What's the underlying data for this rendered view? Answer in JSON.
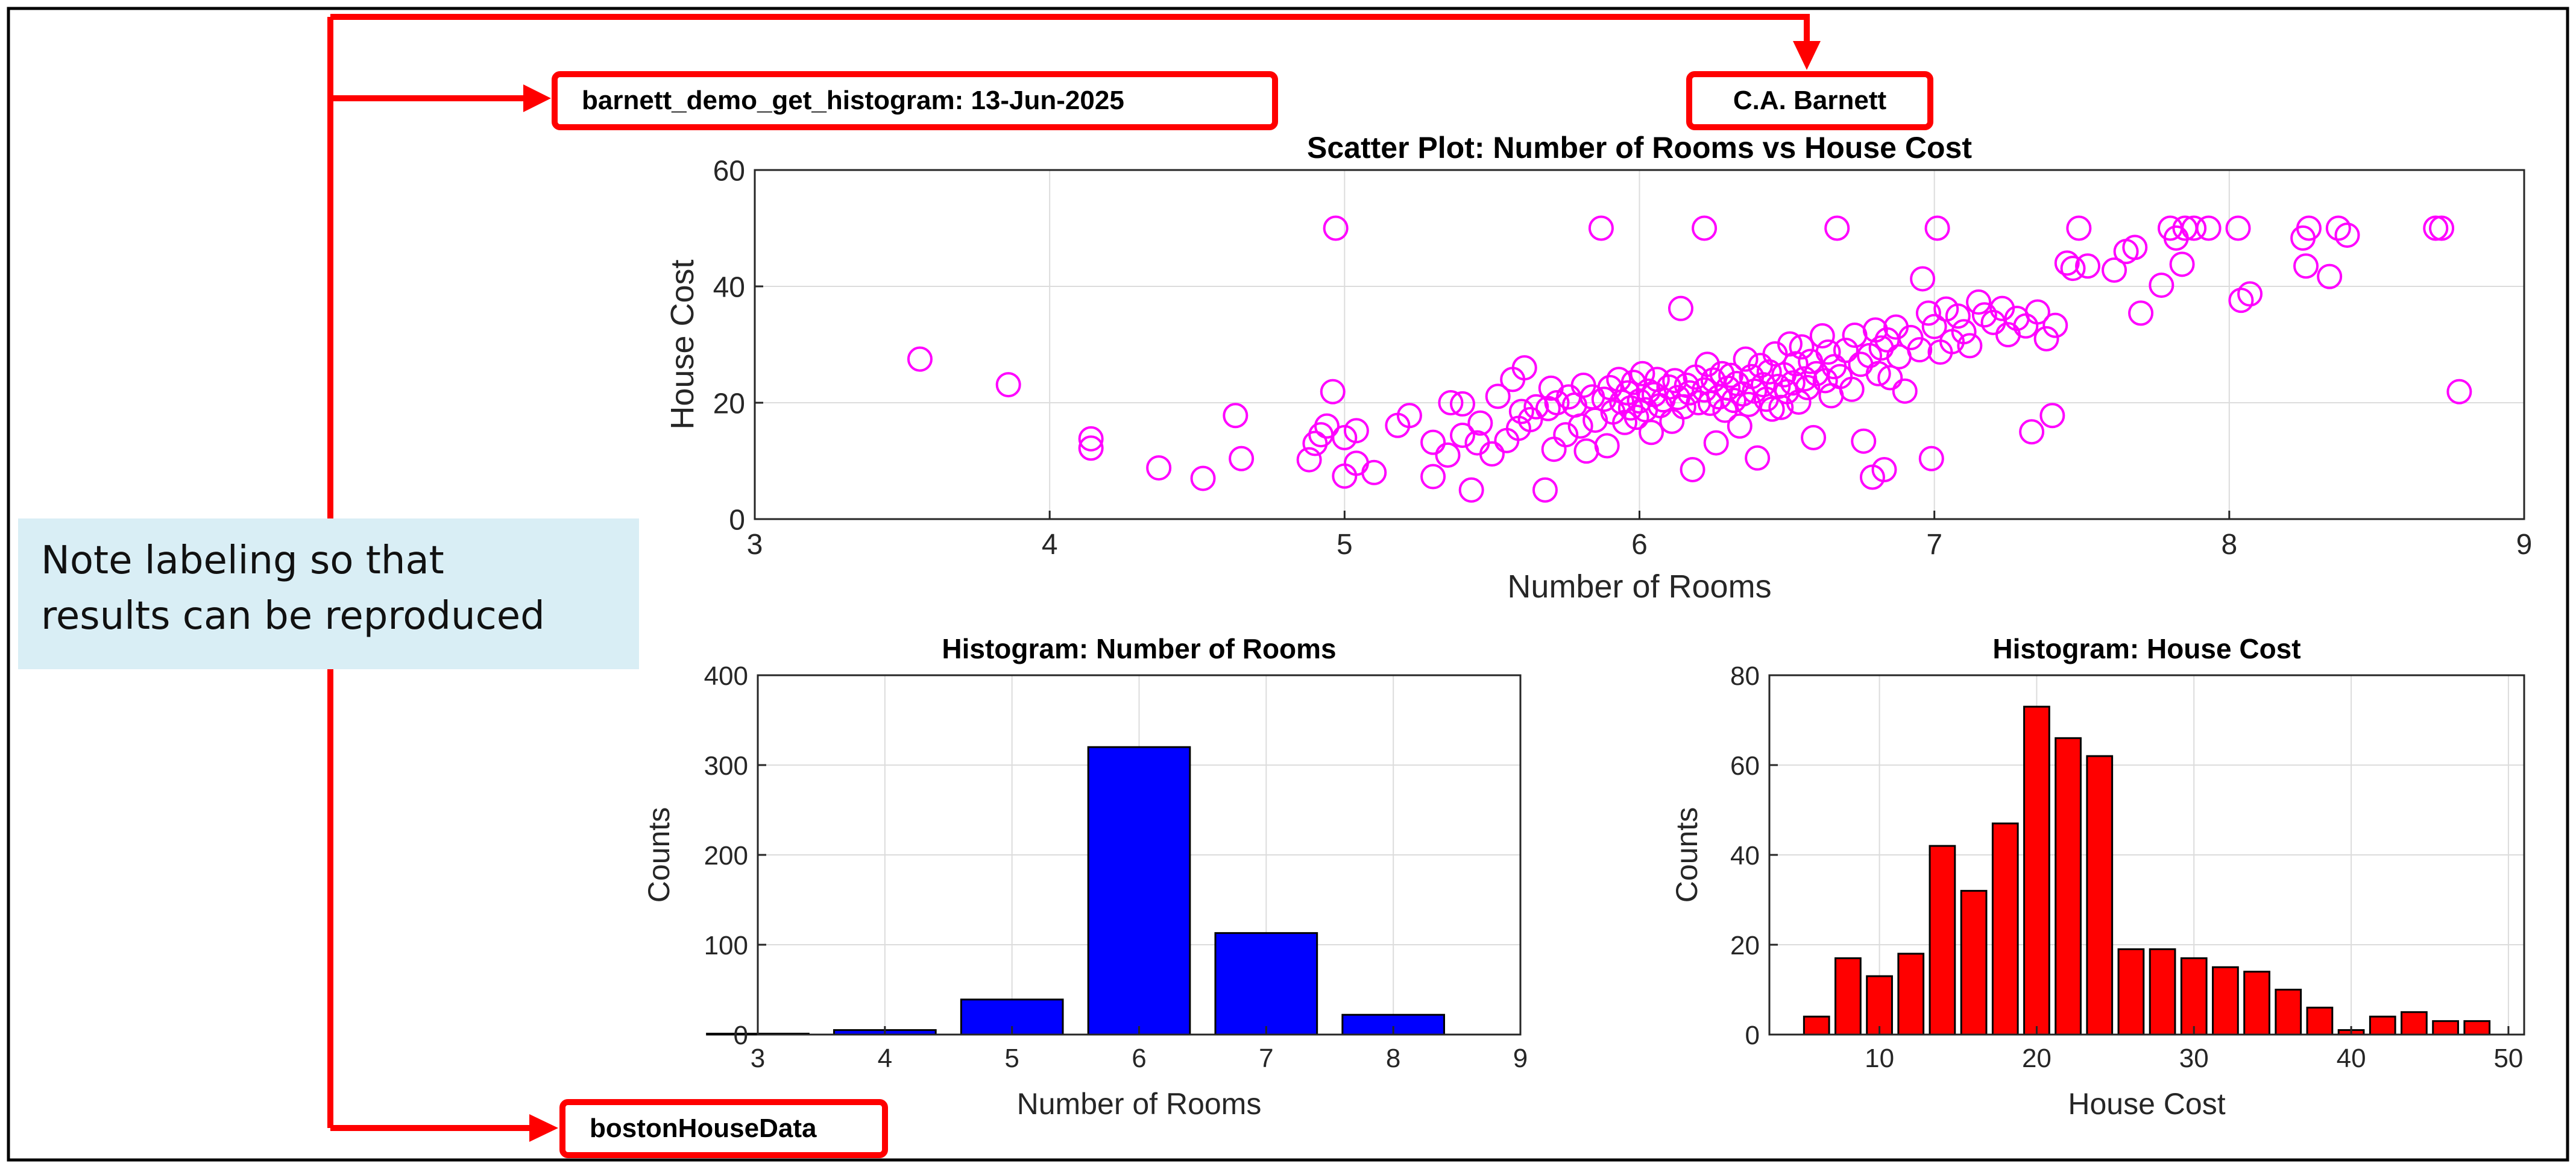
{
  "labels": {
    "program": "barnett_demo_get_histogram: 13-Jun-2025",
    "author": "C.A. Barnett",
    "dataset": "bostonHouseData",
    "note_lines": [
      "Note labeling so that",
      "results can be reproduced"
    ]
  },
  "colors": {
    "annotation_red": "#ff0000",
    "note_background": "#d9eef5",
    "scatter_marker": "#ff00ff",
    "rooms_bars": "#0000ff",
    "cost_bars": "#ff0000"
  },
  "chart_data": [
    {
      "type": "scatter",
      "title": "Scatter Plot: Number of Rooms vs House Cost",
      "xlabel": "Number of Rooms",
      "ylabel": "House Cost",
      "xlim": [
        3,
        9
      ],
      "ylim": [
        0,
        60
      ],
      "xticks": [
        3,
        4,
        5,
        6,
        7,
        8,
        9
      ],
      "yticks": [
        0,
        20,
        40,
        60
      ],
      "grid": true,
      "marker": "open-circle",
      "points": [
        [
          3.56,
          27.5
        ],
        [
          3.86,
          23.1
        ],
        [
          4.14,
          13.8
        ],
        [
          4.14,
          12.2
        ],
        [
          4.37,
          8.8
        ],
        [
          4.52,
          7.0
        ],
        [
          4.63,
          17.8
        ],
        [
          4.65,
          10.4
        ],
        [
          4.88,
          10.2
        ],
        [
          4.9,
          13.0
        ],
        [
          4.92,
          14.5
        ],
        [
          4.94,
          16.0
        ],
        [
          4.96,
          21.9
        ],
        [
          4.97,
          50.0
        ],
        [
          5.0,
          14.0
        ],
        [
          5.0,
          7.4
        ],
        [
          5.04,
          15.2
        ],
        [
          5.04,
          9.6
        ],
        [
          5.1,
          8.0
        ],
        [
          5.18,
          16.1
        ],
        [
          5.22,
          17.8
        ],
        [
          5.3,
          13.2
        ],
        [
          5.3,
          7.3
        ],
        [
          5.35,
          11.0
        ],
        [
          5.36,
          20.0
        ],
        [
          5.4,
          14.4
        ],
        [
          5.4,
          19.8
        ],
        [
          5.43,
          5.0
        ],
        [
          5.45,
          13.1
        ],
        [
          5.46,
          16.5
        ],
        [
          5.5,
          11.2
        ],
        [
          5.52,
          21.1
        ],
        [
          5.55,
          13.5
        ],
        [
          5.57,
          24.0
        ],
        [
          5.59,
          15.6
        ],
        [
          5.6,
          18.5
        ],
        [
          5.61,
          26.0
        ],
        [
          5.63,
          17.1
        ],
        [
          5.65,
          19.3
        ],
        [
          5.68,
          5.0
        ],
        [
          5.69,
          19.0
        ],
        [
          5.7,
          22.5
        ],
        [
          5.71,
          12.0
        ],
        [
          5.72,
          20.0
        ],
        [
          5.75,
          14.5
        ],
        [
          5.76,
          21.0
        ],
        [
          5.78,
          19.6
        ],
        [
          5.8,
          16.0
        ],
        [
          5.81,
          23.0
        ],
        [
          5.82,
          11.7
        ],
        [
          5.84,
          21.0
        ],
        [
          5.85,
          17.0
        ],
        [
          5.87,
          50.0
        ],
        [
          5.88,
          20.6
        ],
        [
          5.89,
          12.6
        ],
        [
          5.9,
          22.6
        ],
        [
          5.91,
          18.4
        ],
        [
          5.93,
          24.0
        ],
        [
          5.94,
          20.1
        ],
        [
          5.95,
          16.6
        ],
        [
          5.96,
          21.7
        ],
        [
          5.97,
          19.1
        ],
        [
          5.98,
          23.5
        ],
        [
          5.99,
          17.5
        ],
        [
          6.0,
          20.3
        ],
        [
          6.01,
          25.0
        ],
        [
          6.02,
          18.8
        ],
        [
          6.03,
          22.0
        ],
        [
          6.04,
          14.9
        ],
        [
          6.05,
          21.4
        ],
        [
          6.06,
          24.0
        ],
        [
          6.07,
          19.5
        ],
        [
          6.08,
          20.5
        ],
        [
          6.1,
          22.7
        ],
        [
          6.11,
          16.8
        ],
        [
          6.12,
          23.8
        ],
        [
          6.13,
          20.9
        ],
        [
          6.14,
          36.2
        ],
        [
          6.15,
          19.3
        ],
        [
          6.16,
          23.0
        ],
        [
          6.17,
          21.7
        ],
        [
          6.18,
          8.5
        ],
        [
          6.19,
          24.4
        ],
        [
          6.2,
          20.0
        ],
        [
          6.22,
          50.0
        ],
        [
          6.22,
          22.2
        ],
        [
          6.23,
          26.6
        ],
        [
          6.24,
          19.9
        ],
        [
          6.25,
          23.9
        ],
        [
          6.26,
          13.1
        ],
        [
          6.27,
          21.0
        ],
        [
          6.28,
          25.0
        ],
        [
          6.29,
          18.7
        ],
        [
          6.3,
          22.5
        ],
        [
          6.31,
          24.7
        ],
        [
          6.32,
          20.4
        ],
        [
          6.33,
          23.3
        ],
        [
          6.34,
          16.0
        ],
        [
          6.35,
          21.5
        ],
        [
          6.36,
          27.5
        ],
        [
          6.37,
          19.7
        ],
        [
          6.38,
          24.5
        ],
        [
          6.39,
          22.0
        ],
        [
          6.4,
          10.5
        ],
        [
          6.41,
          26.4
        ],
        [
          6.42,
          23.1
        ],
        [
          6.43,
          20.6
        ],
        [
          6.44,
          25.3
        ],
        [
          6.45,
          18.9
        ],
        [
          6.46,
          28.4
        ],
        [
          6.47,
          22.8
        ],
        [
          6.48,
          19.2
        ],
        [
          6.49,
          24.8
        ],
        [
          6.5,
          21.9
        ],
        [
          6.51,
          30.1
        ],
        [
          6.52,
          23.4
        ],
        [
          6.53,
          26.7
        ],
        [
          6.54,
          20.1
        ],
        [
          6.55,
          29.6
        ],
        [
          6.56,
          24.1
        ],
        [
          6.57,
          22.6
        ],
        [
          6.58,
          27.1
        ],
        [
          6.59,
          14.0
        ],
        [
          6.6,
          25.0
        ],
        [
          6.62,
          31.5
        ],
        [
          6.63,
          23.8
        ],
        [
          6.64,
          28.7
        ],
        [
          6.65,
          21.2
        ],
        [
          6.66,
          26.2
        ],
        [
          6.67,
          50.0
        ],
        [
          6.68,
          24.5
        ],
        [
          6.7,
          29.0
        ],
        [
          6.72,
          22.3
        ],
        [
          6.73,
          31.6
        ],
        [
          6.75,
          26.6
        ],
        [
          6.76,
          13.4
        ],
        [
          6.78,
          28.1
        ],
        [
          6.79,
          7.2
        ],
        [
          6.8,
          32.5
        ],
        [
          6.81,
          25.0
        ],
        [
          6.82,
          29.4
        ],
        [
          6.83,
          8.5
        ],
        [
          6.84,
          30.8
        ],
        [
          6.85,
          24.3
        ],
        [
          6.87,
          33.0
        ],
        [
          6.88,
          27.9
        ],
        [
          6.9,
          22.0
        ],
        [
          6.92,
          31.2
        ],
        [
          6.95,
          29.1
        ],
        [
          6.96,
          41.3
        ],
        [
          6.98,
          35.4
        ],
        [
          6.99,
          10.4
        ],
        [
          7.0,
          33.1
        ],
        [
          7.01,
          50.0
        ],
        [
          7.02,
          28.7
        ],
        [
          7.04,
          36.1
        ],
        [
          7.06,
          30.5
        ],
        [
          7.08,
          34.9
        ],
        [
          7.1,
          32.2
        ],
        [
          7.12,
          29.8
        ],
        [
          7.15,
          37.3
        ],
        [
          7.17,
          35.1
        ],
        [
          7.2,
          33.8
        ],
        [
          7.23,
          36.2
        ],
        [
          7.25,
          31.7
        ],
        [
          7.28,
          34.5
        ],
        [
          7.31,
          33.2
        ],
        [
          7.33,
          15.0
        ],
        [
          7.35,
          35.6
        ],
        [
          7.38,
          31.0
        ],
        [
          7.4,
          17.8
        ],
        [
          7.41,
          33.3
        ],
        [
          7.45,
          44.0
        ],
        [
          7.47,
          43.1
        ],
        [
          7.49,
          50.0
        ],
        [
          7.52,
          43.5
        ],
        [
          7.61,
          42.8
        ],
        [
          7.65,
          46.0
        ],
        [
          7.68,
          46.7
        ],
        [
          7.7,
          35.4
        ],
        [
          7.77,
          40.2
        ],
        [
          7.8,
          50.0
        ],
        [
          7.82,
          48.3
        ],
        [
          7.84,
          43.8
        ],
        [
          7.85,
          50.0
        ],
        [
          7.88,
          50.0
        ],
        [
          7.93,
          50.0
        ],
        [
          8.03,
          50.0
        ],
        [
          8.04,
          37.6
        ],
        [
          8.07,
          38.7
        ],
        [
          8.25,
          48.3
        ],
        [
          8.26,
          43.5
        ],
        [
          8.27,
          50.0
        ],
        [
          8.34,
          41.7
        ],
        [
          8.37,
          50.0
        ],
        [
          8.4,
          48.8
        ],
        [
          8.7,
          50.0
        ],
        [
          8.72,
          50.0
        ],
        [
          8.78,
          21.9
        ]
      ]
    },
    {
      "type": "bar",
      "title": "Histogram: Number of Rooms",
      "xlabel": "Number of Rooms",
      "ylabel": "Counts",
      "xlim": [
        3,
        9
      ],
      "ylim": [
        0,
        400
      ],
      "xticks": [
        3,
        4,
        5,
        6,
        7,
        8,
        9
      ],
      "yticks": [
        0,
        100,
        200,
        300,
        400
      ],
      "grid": true,
      "bin_width": 0.8,
      "x": [
        3,
        4,
        5,
        6,
        7,
        8
      ],
      "values": [
        1,
        5,
        39,
        320,
        113,
        22
      ]
    },
    {
      "type": "bar",
      "title": "Histogram: House Cost",
      "xlabel": "House Cost",
      "ylabel": "Counts",
      "xlim": [
        3,
        51
      ],
      "ylim": [
        0,
        80
      ],
      "xticks": [
        10,
        20,
        30,
        40,
        50
      ],
      "yticks": [
        0,
        20,
        40,
        60,
        80
      ],
      "grid": true,
      "bin_width": 1.6,
      "x": [
        6,
        8,
        10,
        12,
        14,
        16,
        18,
        20,
        22,
        24,
        26,
        28,
        30,
        32,
        34,
        36,
        38,
        40,
        42,
        44,
        46,
        48
      ],
      "values": [
        4,
        17,
        13,
        18,
        42,
        32,
        47,
        73,
        66,
        62,
        19,
        19,
        17,
        15,
        14,
        10,
        6,
        1,
        4,
        5,
        3,
        3
      ]
    }
  ]
}
